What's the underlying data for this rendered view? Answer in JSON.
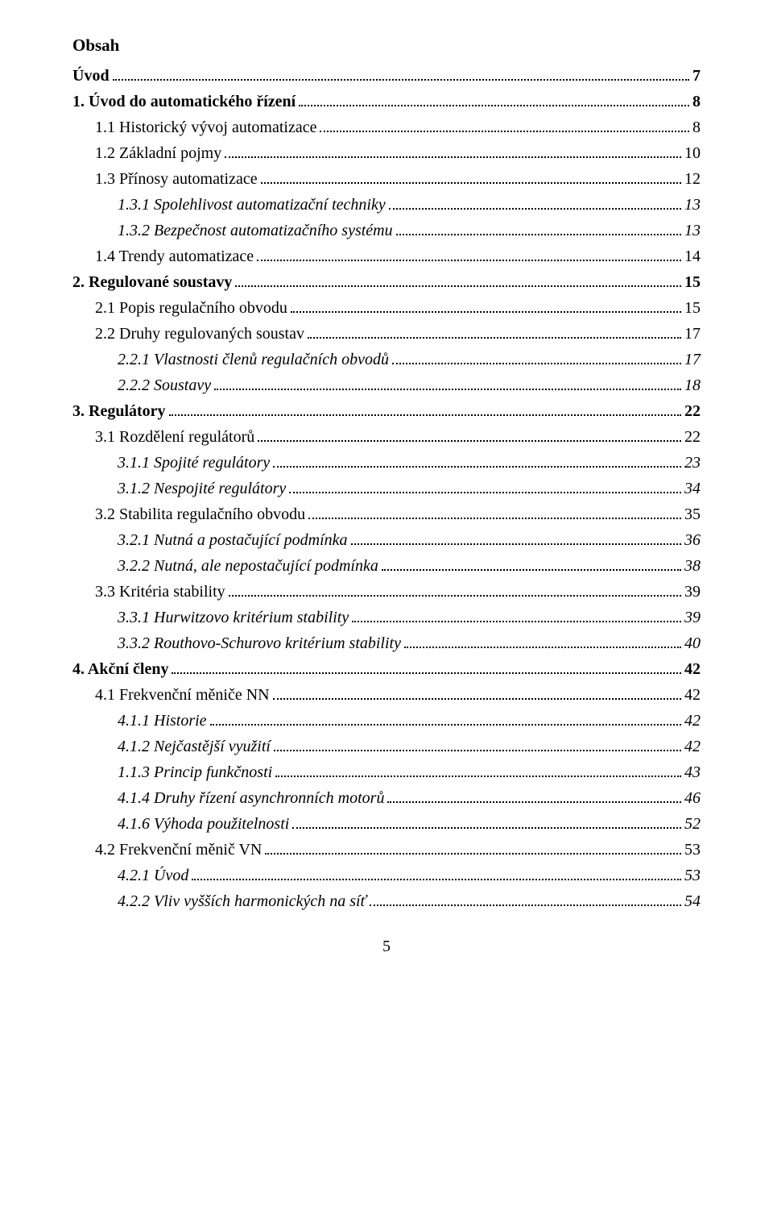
{
  "title": "Obsah",
  "page_number": "5",
  "entries": [
    {
      "label": "Úvod",
      "page": "7",
      "bold": true,
      "indent": 0
    },
    {
      "label": "1. Úvod do automatického řízení",
      "page": "8",
      "bold": true,
      "indent": 0
    },
    {
      "label": "1.1 Historický vývoj automatizace",
      "page": "8",
      "indent": 1
    },
    {
      "label": "1.2 Základní pojmy",
      "page": "10",
      "indent": 1
    },
    {
      "label": "1.3 Přínosy automatizace",
      "page": "12",
      "indent": 1
    },
    {
      "label": "1.3.1 Spolehlivost automatizační techniky",
      "page": "13",
      "italic": true,
      "indent": 2
    },
    {
      "label": "1.3.2 Bezpečnost automatizačního systému",
      "page": "13",
      "italic": true,
      "indent": 2
    },
    {
      "label": "1.4 Trendy automatizace",
      "page": "14",
      "indent": 1
    },
    {
      "label": "2. Regulované soustavy",
      "page": "15",
      "bold": true,
      "indent": 0
    },
    {
      "label": "2.1 Popis regulačního obvodu",
      "page": "15",
      "indent": 1
    },
    {
      "label": "2.2 Druhy regulovaných soustav",
      "page": "17",
      "indent": 1
    },
    {
      "label": "2.2.1 Vlastnosti členů regulačních obvodů",
      "page": "17",
      "italic": true,
      "indent": 2
    },
    {
      "label": "2.2.2 Soustavy",
      "page": "18",
      "italic": true,
      "indent": 2
    },
    {
      "label": "3. Regulátory",
      "page": "22",
      "bold": true,
      "indent": 0
    },
    {
      "label": "3.1 Rozdělení regulátorů",
      "page": "22",
      "indent": 1
    },
    {
      "label": "3.1.1 Spojité regulátory",
      "page": "23",
      "italic": true,
      "indent": 2
    },
    {
      "label": "3.1.2 Nespojité regulátory",
      "page": "34",
      "italic": true,
      "indent": 2
    },
    {
      "label": "3.2 Stabilita regulačního obvodu",
      "page": "35",
      "indent": 1
    },
    {
      "label": "3.2.1 Nutná a postačující podmínka",
      "page": "36",
      "italic": true,
      "indent": 2
    },
    {
      "label": "3.2.2 Nutná, ale nepostačující podmínka",
      "page": "38",
      "italic": true,
      "indent": 2
    },
    {
      "label": "3.3 Kritéria stability",
      "page": "39",
      "indent": 1
    },
    {
      "label": "3.3.1 Hurwitzovo kritérium stability",
      "page": "39",
      "italic": true,
      "indent": 2
    },
    {
      "label": "3.3.2 Routhovo-Schurovo kritérium stability",
      "page": "40",
      "italic": true,
      "indent": 2
    },
    {
      "label": "4. Akční členy",
      "page": "42",
      "bold": true,
      "indent": 0
    },
    {
      "label": "4.1 Frekvenční měniče NN",
      "page": "42",
      "indent": 1
    },
    {
      "label": "4.1.1 Historie",
      "page": "42",
      "italic": true,
      "indent": 2
    },
    {
      "label": "4.1.2 Nejčastější využití",
      "page": "42",
      "italic": true,
      "indent": 2
    },
    {
      "label": "1.1.3 Princip funkčnosti",
      "page": "43",
      "italic": true,
      "indent": 2
    },
    {
      "label": "4.1.4 Druhy řízení asynchronních motorů",
      "page": "46",
      "italic": true,
      "indent": 2
    },
    {
      "label": "4.1.6 Výhoda použitelnosti",
      "page": "52",
      "italic": true,
      "indent": 2
    },
    {
      "label": "4.2 Frekvenční měnič VN",
      "page": "53",
      "indent": 1
    },
    {
      "label": "4.2.1 Úvod",
      "page": "53",
      "italic": true,
      "indent": 2
    },
    {
      "label": "4.2.2 Vliv vyšších harmonických na síť",
      "page": "54",
      "italic": true,
      "indent": 2
    }
  ]
}
